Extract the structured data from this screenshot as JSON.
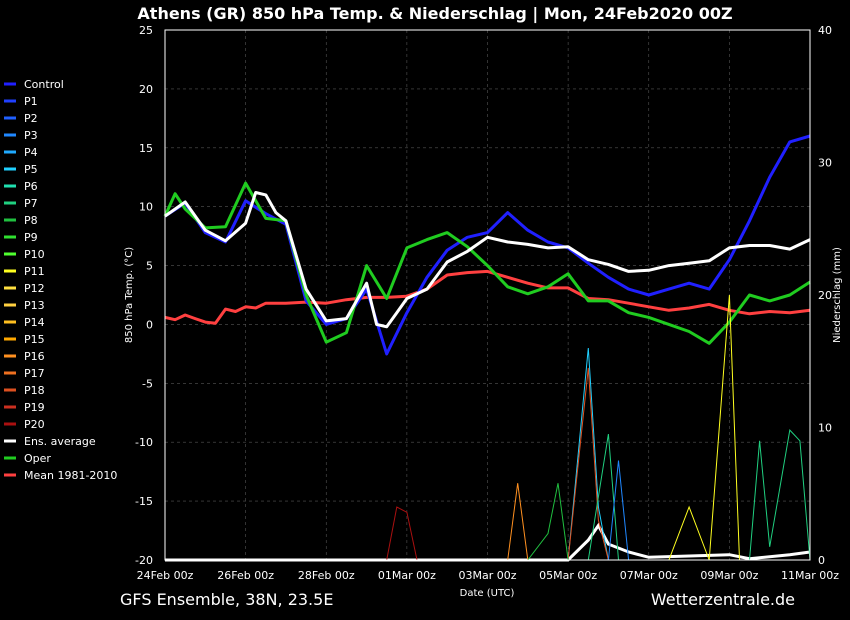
{
  "title": "Athens  (GR)  850 hPa Temp. & Niederschlag | Mon, 24Feb2020 00Z",
  "footer": {
    "left": "GFS Ensemble, 38N, 23.5E",
    "right": "Wetterzentrale.de"
  },
  "chart_data": {
    "type": "line",
    "xlabel": "Date (UTC)",
    "ylabel": "850 hPa Temp. (°C)",
    "y2label": "Niederschlag (mm)",
    "ylim": [
      -20,
      25
    ],
    "y2lim": [
      0,
      40
    ],
    "yticks": [
      "25",
      "20",
      "15",
      "10",
      "5",
      "0",
      "-5",
      "-10",
      "-15",
      "-20"
    ],
    "y2ticks": [
      "40",
      "30",
      "20",
      "10",
      "0"
    ],
    "xticks": [
      "24Feb 00z",
      "26Feb 00z",
      "28Feb 00z",
      "01Mar 00z",
      "03Mar 00z",
      "05Mar 00z",
      "07Mar 00z",
      "09Mar 00z",
      "11Mar 00z"
    ],
    "x_hours": [
      0,
      384
    ],
    "grid": true,
    "legend_position": "left",
    "legend": [
      {
        "name": "Control",
        "color": "#2020ff"
      },
      {
        "name": "P1",
        "color": "#2040ff"
      },
      {
        "name": "P2",
        "color": "#2060ff"
      },
      {
        "name": "P3",
        "color": "#2088ff"
      },
      {
        "name": "P4",
        "color": "#20aaff"
      },
      {
        "name": "P5",
        "color": "#20d0ff"
      },
      {
        "name": "P6",
        "color": "#20e0b0"
      },
      {
        "name": "P7",
        "color": "#20d080"
      },
      {
        "name": "P8",
        "color": "#20c040"
      },
      {
        "name": "P9",
        "color": "#30e030"
      },
      {
        "name": "P10",
        "color": "#50ff30"
      },
      {
        "name": "P11",
        "color": "#ffff20"
      },
      {
        "name": "P12",
        "color": "#ffe040"
      },
      {
        "name": "P13",
        "color": "#ffd040"
      },
      {
        "name": "P14",
        "color": "#ffc020"
      },
      {
        "name": "P15",
        "color": "#ffa800"
      },
      {
        "name": "P16",
        "color": "#ff9020"
      },
      {
        "name": "P17",
        "color": "#ee7020"
      },
      {
        "name": "P18",
        "color": "#dd5020"
      },
      {
        "name": "P19",
        "color": "#cc3020"
      },
      {
        "name": "P20",
        "color": "#aa1010"
      },
      {
        "name": "Ens. average",
        "color": "#ffffff"
      },
      {
        "name": "Oper",
        "color": "#20cc20"
      },
      {
        "name": "Mean 1981-2010",
        "color": "#ff4040"
      }
    ],
    "series_temp": [
      {
        "name": "Ens. average",
        "color": "#ffffff",
        "width": 3,
        "values": [
          [
            0,
            9.2
          ],
          [
            12,
            10.4
          ],
          [
            24,
            8.0
          ],
          [
            36,
            7.1
          ],
          [
            48,
            8.6
          ],
          [
            54,
            11.2
          ],
          [
            60,
            11.0
          ],
          [
            66,
            9.5
          ],
          [
            72,
            8.8
          ],
          [
            84,
            3.0
          ],
          [
            96,
            0.3
          ],
          [
            108,
            0.5
          ],
          [
            114,
            2.0
          ],
          [
            120,
            3.5
          ],
          [
            126,
            0.0
          ],
          [
            132,
            -0.2
          ],
          [
            138,
            1.0
          ],
          [
            144,
            2.2
          ],
          [
            156,
            3.0
          ],
          [
            168,
            5.3
          ],
          [
            180,
            6.2
          ],
          [
            192,
            7.4
          ],
          [
            204,
            7.0
          ],
          [
            216,
            6.8
          ],
          [
            228,
            6.5
          ],
          [
            240,
            6.6
          ],
          [
            252,
            5.5
          ],
          [
            264,
            5.1
          ],
          [
            276,
            4.5
          ],
          [
            288,
            4.6
          ],
          [
            300,
            5.0
          ],
          [
            312,
            5.2
          ],
          [
            324,
            5.4
          ],
          [
            336,
            6.5
          ],
          [
            348,
            6.7
          ],
          [
            360,
            6.7
          ],
          [
            372,
            6.4
          ],
          [
            384,
            7.2
          ]
        ]
      },
      {
        "name": "Oper",
        "color": "#20cc20",
        "width": 3,
        "values": [
          [
            0,
            9.2
          ],
          [
            6,
            11.1
          ],
          [
            12,
            9.8
          ],
          [
            24,
            8.2
          ],
          [
            36,
            8.3
          ],
          [
            48,
            12.0
          ],
          [
            60,
            9.0
          ],
          [
            72,
            8.8
          ],
          [
            84,
            2.5
          ],
          [
            96,
            -1.5
          ],
          [
            108,
            -0.7
          ],
          [
            120,
            5.0
          ],
          [
            132,
            2.2
          ],
          [
            144,
            6.5
          ],
          [
            156,
            7.2
          ],
          [
            168,
            7.8
          ],
          [
            180,
            6.6
          ],
          [
            192,
            5.0
          ],
          [
            204,
            3.2
          ],
          [
            216,
            2.6
          ],
          [
            228,
            3.2
          ],
          [
            240,
            4.3
          ],
          [
            252,
            2.0
          ],
          [
            264,
            2.0
          ],
          [
            276,
            1.0
          ],
          [
            288,
            0.6
          ],
          [
            300,
            0.0
          ],
          [
            312,
            -0.6
          ],
          [
            324,
            -1.6
          ],
          [
            336,
            0.2
          ],
          [
            348,
            2.5
          ],
          [
            360,
            2.0
          ],
          [
            372,
            2.5
          ],
          [
            384,
            3.6
          ]
        ]
      },
      {
        "name": "Control",
        "color": "#2020ff",
        "width": 3,
        "values": [
          [
            0,
            9.2
          ],
          [
            12,
            10.3
          ],
          [
            24,
            7.8
          ],
          [
            36,
            7.0
          ],
          [
            48,
            10.5
          ],
          [
            60,
            9.4
          ],
          [
            72,
            8.5
          ],
          [
            84,
            2.0
          ],
          [
            96,
            0.0
          ],
          [
            108,
            0.5
          ],
          [
            120,
            3.0
          ],
          [
            132,
            -2.5
          ],
          [
            144,
            1.0
          ],
          [
            156,
            4.0
          ],
          [
            168,
            6.3
          ],
          [
            180,
            7.4
          ],
          [
            192,
            7.8
          ],
          [
            204,
            9.5
          ],
          [
            216,
            8.0
          ],
          [
            228,
            7.0
          ],
          [
            240,
            6.5
          ],
          [
            252,
            5.2
          ],
          [
            264,
            4.0
          ],
          [
            276,
            3.0
          ],
          [
            288,
            2.5
          ],
          [
            300,
            3.0
          ],
          [
            312,
            3.5
          ],
          [
            324,
            3.0
          ],
          [
            336,
            5.5
          ],
          [
            348,
            8.8
          ],
          [
            360,
            12.5
          ],
          [
            372,
            15.5
          ],
          [
            384,
            16.0
          ]
        ]
      },
      {
        "name": "Mean 1981-2010",
        "color": "#ff4040",
        "width": 3,
        "values": [
          [
            0,
            0.6
          ],
          [
            6,
            0.4
          ],
          [
            12,
            0.8
          ],
          [
            18,
            0.5
          ],
          [
            24,
            0.2
          ],
          [
            30,
            0.1
          ],
          [
            36,
            1.3
          ],
          [
            42,
            1.1
          ],
          [
            48,
            1.5
          ],
          [
            54,
            1.4
          ],
          [
            60,
            1.8
          ],
          [
            72,
            1.8
          ],
          [
            84,
            1.9
          ],
          [
            96,
            1.8
          ],
          [
            108,
            2.1
          ],
          [
            120,
            2.3
          ],
          [
            132,
            2.3
          ],
          [
            144,
            2.4
          ],
          [
            156,
            3.0
          ],
          [
            168,
            4.2
          ],
          [
            180,
            4.4
          ],
          [
            192,
            4.5
          ],
          [
            204,
            4.0
          ],
          [
            216,
            3.5
          ],
          [
            228,
            3.1
          ],
          [
            240,
            3.1
          ],
          [
            252,
            2.2
          ],
          [
            264,
            2.1
          ],
          [
            276,
            1.8
          ],
          [
            288,
            1.5
          ],
          [
            300,
            1.2
          ],
          [
            312,
            1.4
          ],
          [
            324,
            1.7
          ],
          [
            336,
            1.2
          ],
          [
            348,
            0.9
          ],
          [
            360,
            1.1
          ],
          [
            372,
            1.0
          ],
          [
            384,
            1.2
          ]
        ]
      }
    ],
    "series_precip": [
      {
        "name": "Ens. average",
        "color": "#ffffff",
        "width": 3,
        "values": [
          [
            0,
            0
          ],
          [
            240,
            0
          ],
          [
            252,
            1.5
          ],
          [
            258,
            2.6
          ],
          [
            264,
            1.2
          ],
          [
            276,
            0.6
          ],
          [
            288,
            0.2
          ],
          [
            336,
            0.4
          ],
          [
            348,
            0.1
          ],
          [
            372,
            0.4
          ],
          [
            384,
            0.6
          ]
        ]
      },
      {
        "name": "P5",
        "color": "#20d0ff",
        "width": 1,
        "values": [
          [
            0,
            0
          ],
          [
            240,
            0
          ],
          [
            252,
            16.0
          ],
          [
            258,
            4.0
          ],
          [
            264,
            0.0
          ],
          [
            384,
            0
          ]
        ]
      },
      {
        "name": "P18",
        "color": "#dd5020",
        "width": 1,
        "values": [
          [
            0,
            0
          ],
          [
            240,
            0
          ],
          [
            252,
            14.5
          ],
          [
            258,
            3.0
          ],
          [
            264,
            0.0
          ],
          [
            384,
            0
          ]
        ]
      },
      {
        "name": "P11",
        "color": "#ffff20",
        "width": 1,
        "values": [
          [
            0,
            0
          ],
          [
            300,
            0
          ],
          [
            312,
            4.0
          ],
          [
            324,
            0
          ],
          [
            336,
            20.0
          ],
          [
            342,
            0
          ],
          [
            384,
            0
          ]
        ]
      },
      {
        "name": "P7",
        "color": "#20d080",
        "width": 1,
        "values": [
          [
            0,
            0
          ],
          [
            252,
            0
          ],
          [
            264,
            9.5
          ],
          [
            270,
            0
          ],
          [
            348,
            0
          ],
          [
            354,
            9.0
          ],
          [
            360,
            1.0
          ],
          [
            372,
            9.8
          ],
          [
            378,
            9.0
          ],
          [
            384,
            0
          ]
        ]
      },
      {
        "name": "P16",
        "color": "#ff9020",
        "width": 1,
        "values": [
          [
            0,
            0
          ],
          [
            204,
            0
          ],
          [
            210,
            5.8
          ],
          [
            216,
            0
          ],
          [
            384,
            0
          ]
        ]
      },
      {
        "name": "P20",
        "color": "#aa1010",
        "width": 1,
        "values": [
          [
            0,
            0
          ],
          [
            132,
            0
          ],
          [
            138,
            4.0
          ],
          [
            144,
            3.6
          ],
          [
            150,
            0
          ],
          [
            384,
            0
          ]
        ]
      },
      {
        "name": "P8",
        "color": "#20c040",
        "width": 1,
        "values": [
          [
            0,
            0
          ],
          [
            216,
            0
          ],
          [
            228,
            2.0
          ],
          [
            234,
            5.8
          ],
          [
            240,
            0
          ],
          [
            384,
            0
          ]
        ]
      },
      {
        "name": "P3",
        "color": "#2088ff",
        "width": 1,
        "values": [
          [
            0,
            0
          ],
          [
            264,
            0
          ],
          [
            270,
            7.5
          ],
          [
            276,
            0
          ],
          [
            384,
            0
          ]
        ]
      }
    ]
  }
}
